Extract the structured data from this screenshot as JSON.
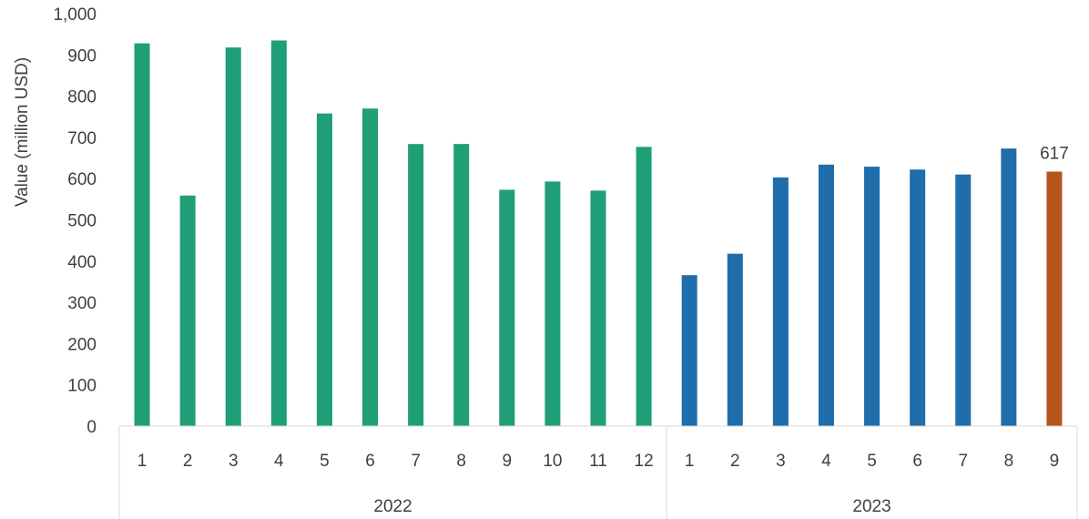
{
  "chart_data": {
    "type": "bar",
    "title": "",
    "xlabel": "",
    "ylabel": "Value (million USD)",
    "ylim": [
      0,
      1000
    ],
    "y_ticks": [
      "0",
      "100",
      "200",
      "300",
      "400",
      "500",
      "600",
      "700",
      "800",
      "900",
      "1,000"
    ],
    "grid": false,
    "groups": [
      {
        "name": "2022",
        "color": "#1f9e78",
        "categories": [
          "1",
          "2",
          "3",
          "4",
          "5",
          "6",
          "7",
          "8",
          "9",
          "10",
          "11",
          "12"
        ],
        "values": [
          928,
          559,
          918,
          935,
          758,
          770,
          684,
          684,
          573,
          593,
          571,
          677
        ]
      },
      {
        "name": "2023",
        "color": "#1f6dab",
        "categories": [
          "1",
          "2",
          "3",
          "4",
          "5",
          "6",
          "7",
          "8",
          "9"
        ],
        "values": [
          366,
          418,
          603,
          634,
          629,
          622,
          610,
          673,
          617
        ]
      }
    ],
    "highlight": {
      "group": 1,
      "index": 8,
      "color": "#b5541c",
      "label": "617"
    }
  }
}
